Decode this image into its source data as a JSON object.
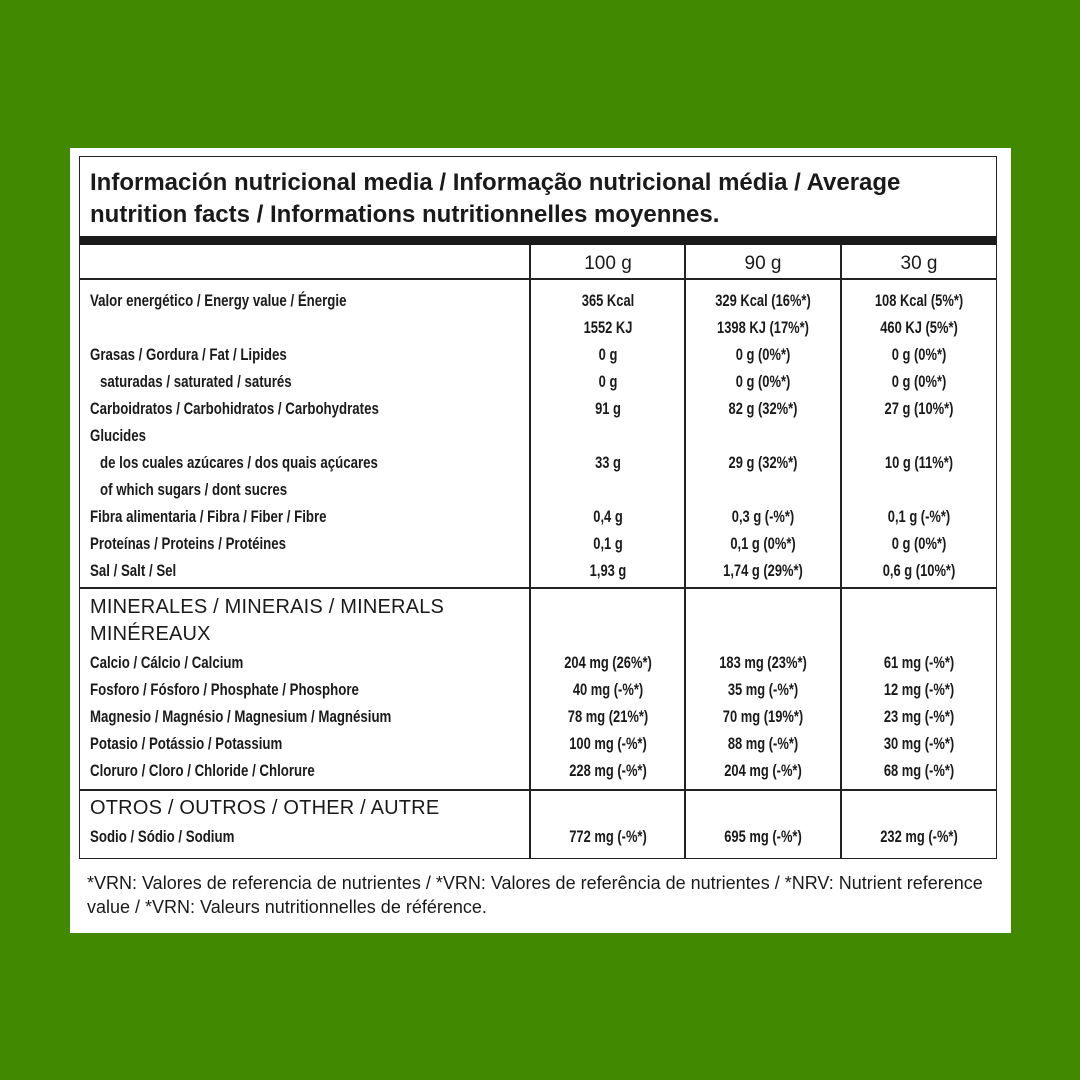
{
  "colors": {
    "background": "#418a00",
    "panel": "#ffffff",
    "text": "#1a1a1a"
  },
  "title": "Información nutricional media / Informação nutricional média / Average nutrition facts / Informations nutritionnelles moyennes.",
  "columns": [
    "100 g",
    "90 g",
    "30 g"
  ],
  "nutrients": [
    {
      "label": "Valor energético / Energy value / Énergie",
      "v": [
        "365 Kcal",
        "329 Kcal (16%*)",
        "108 Kcal (5%*)"
      ]
    },
    {
      "label": "",
      "v": [
        "1552 KJ",
        "1398 KJ (17%*)",
        "460 KJ (5%*)"
      ]
    },
    {
      "label": "Grasas / Gordura / Fat / Lipides",
      "v": [
        "0 g",
        "0 g (0%*)",
        "0 g (0%*)"
      ]
    },
    {
      "label": "saturadas / saturated / saturés",
      "indent": true,
      "v": [
        "0 g",
        "0 g (0%*)",
        "0 g (0%*)"
      ]
    },
    {
      "label": "Carboidratos / Carbohidratos / Carbohydrates",
      "v": [
        "91 g",
        "82 g (32%*)",
        "27 g (10%*)"
      ]
    },
    {
      "label": "Glucides",
      "v": [
        "",
        "",
        ""
      ]
    },
    {
      "label": "de los cuales azúcares / dos quais açúcares",
      "indent": true,
      "v": [
        "33 g",
        "29 g (32%*)",
        "10 g (11%*)"
      ]
    },
    {
      "label": "of which sugars / dont sucres",
      "indent": true,
      "v": [
        "",
        "",
        ""
      ]
    },
    {
      "label": "Fibra alimentaria / Fibra / Fiber / Fibre",
      "v": [
        "0,4 g",
        "0,3 g (-%*)",
        "0,1 g (-%*)"
      ]
    },
    {
      "label": "Proteínas / Proteins / Protéines",
      "v": [
        "0,1 g",
        "0,1 g (0%*)",
        "0 g (0%*)"
      ]
    },
    {
      "label": "Sal / Salt / Sel",
      "v": [
        "1,93 g",
        "1,74 g (29%*)",
        "0,6 g (10%*)"
      ]
    }
  ],
  "minerals": {
    "heading_line1": "MINERALES / MINERAIS / MINERALS",
    "heading_line2": "MINÉREAUX",
    "rows": [
      {
        "label": "Calcio / Cálcio / Calcium",
        "v": [
          "204 mg (26%*)",
          "183 mg (23%*)",
          "61 mg (-%*)"
        ]
      },
      {
        "label": "Fosforo / Fósforo / Phosphate / Phosphore",
        "v": [
          "40 mg (-%*)",
          "35 mg (-%*)",
          "12 mg (-%*)"
        ]
      },
      {
        "label": "Magnesio / Magnésio / Magnesium / Magnésium",
        "v": [
          "78 mg (21%*)",
          "70 mg (19%*)",
          "23 mg (-%*)"
        ]
      },
      {
        "label": "Potasio / Potássio / Potassium",
        "v": [
          "100 mg (-%*)",
          "88 mg (-%*)",
          "30 mg (-%*)"
        ]
      },
      {
        "label": "Cloruro / Cloro / Chloride / Chlorure",
        "v": [
          "228 mg (-%*)",
          "204 mg (-%*)",
          "68 mg (-%*)"
        ]
      }
    ]
  },
  "other": {
    "heading": "OTROS / OUTROS / OTHER / AUTRE",
    "rows": [
      {
        "label": "Sodio / Sódio / Sodium",
        "v": [
          "772 mg (-%*)",
          "695 mg (-%*)",
          "232 mg (-%*)"
        ]
      }
    ]
  },
  "footnote": "*VRN: Valores de referencia de nutrientes / *VRN: Valores de referência de nutrientes / *NRV: Nutrient reference value / *VRN: Valeurs nutritionnelles de référence."
}
